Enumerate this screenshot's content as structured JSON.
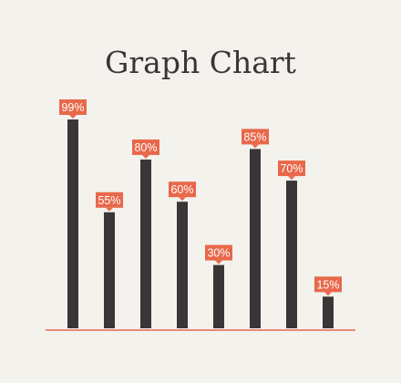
{
  "chart_data": {
    "type": "bar",
    "title": "Graph Chart",
    "categories": [
      "",
      "",
      "",
      "",
      "",
      "",
      "",
      ""
    ],
    "values": [
      99,
      55,
      80,
      60,
      30,
      85,
      70,
      15
    ],
    "data_labels": [
      "99%",
      "55%",
      "80%",
      "60%",
      "30%",
      "85%",
      "70%",
      "15%"
    ],
    "ylim": [
      0,
      100
    ],
    "xlabel": "",
    "ylabel": "",
    "grid": false,
    "colors": {
      "bar": "#3a3537",
      "label": "#e8684a",
      "baseline": "#e8684a",
      "title": "#3a3537",
      "background": "#f4f2ed"
    }
  }
}
